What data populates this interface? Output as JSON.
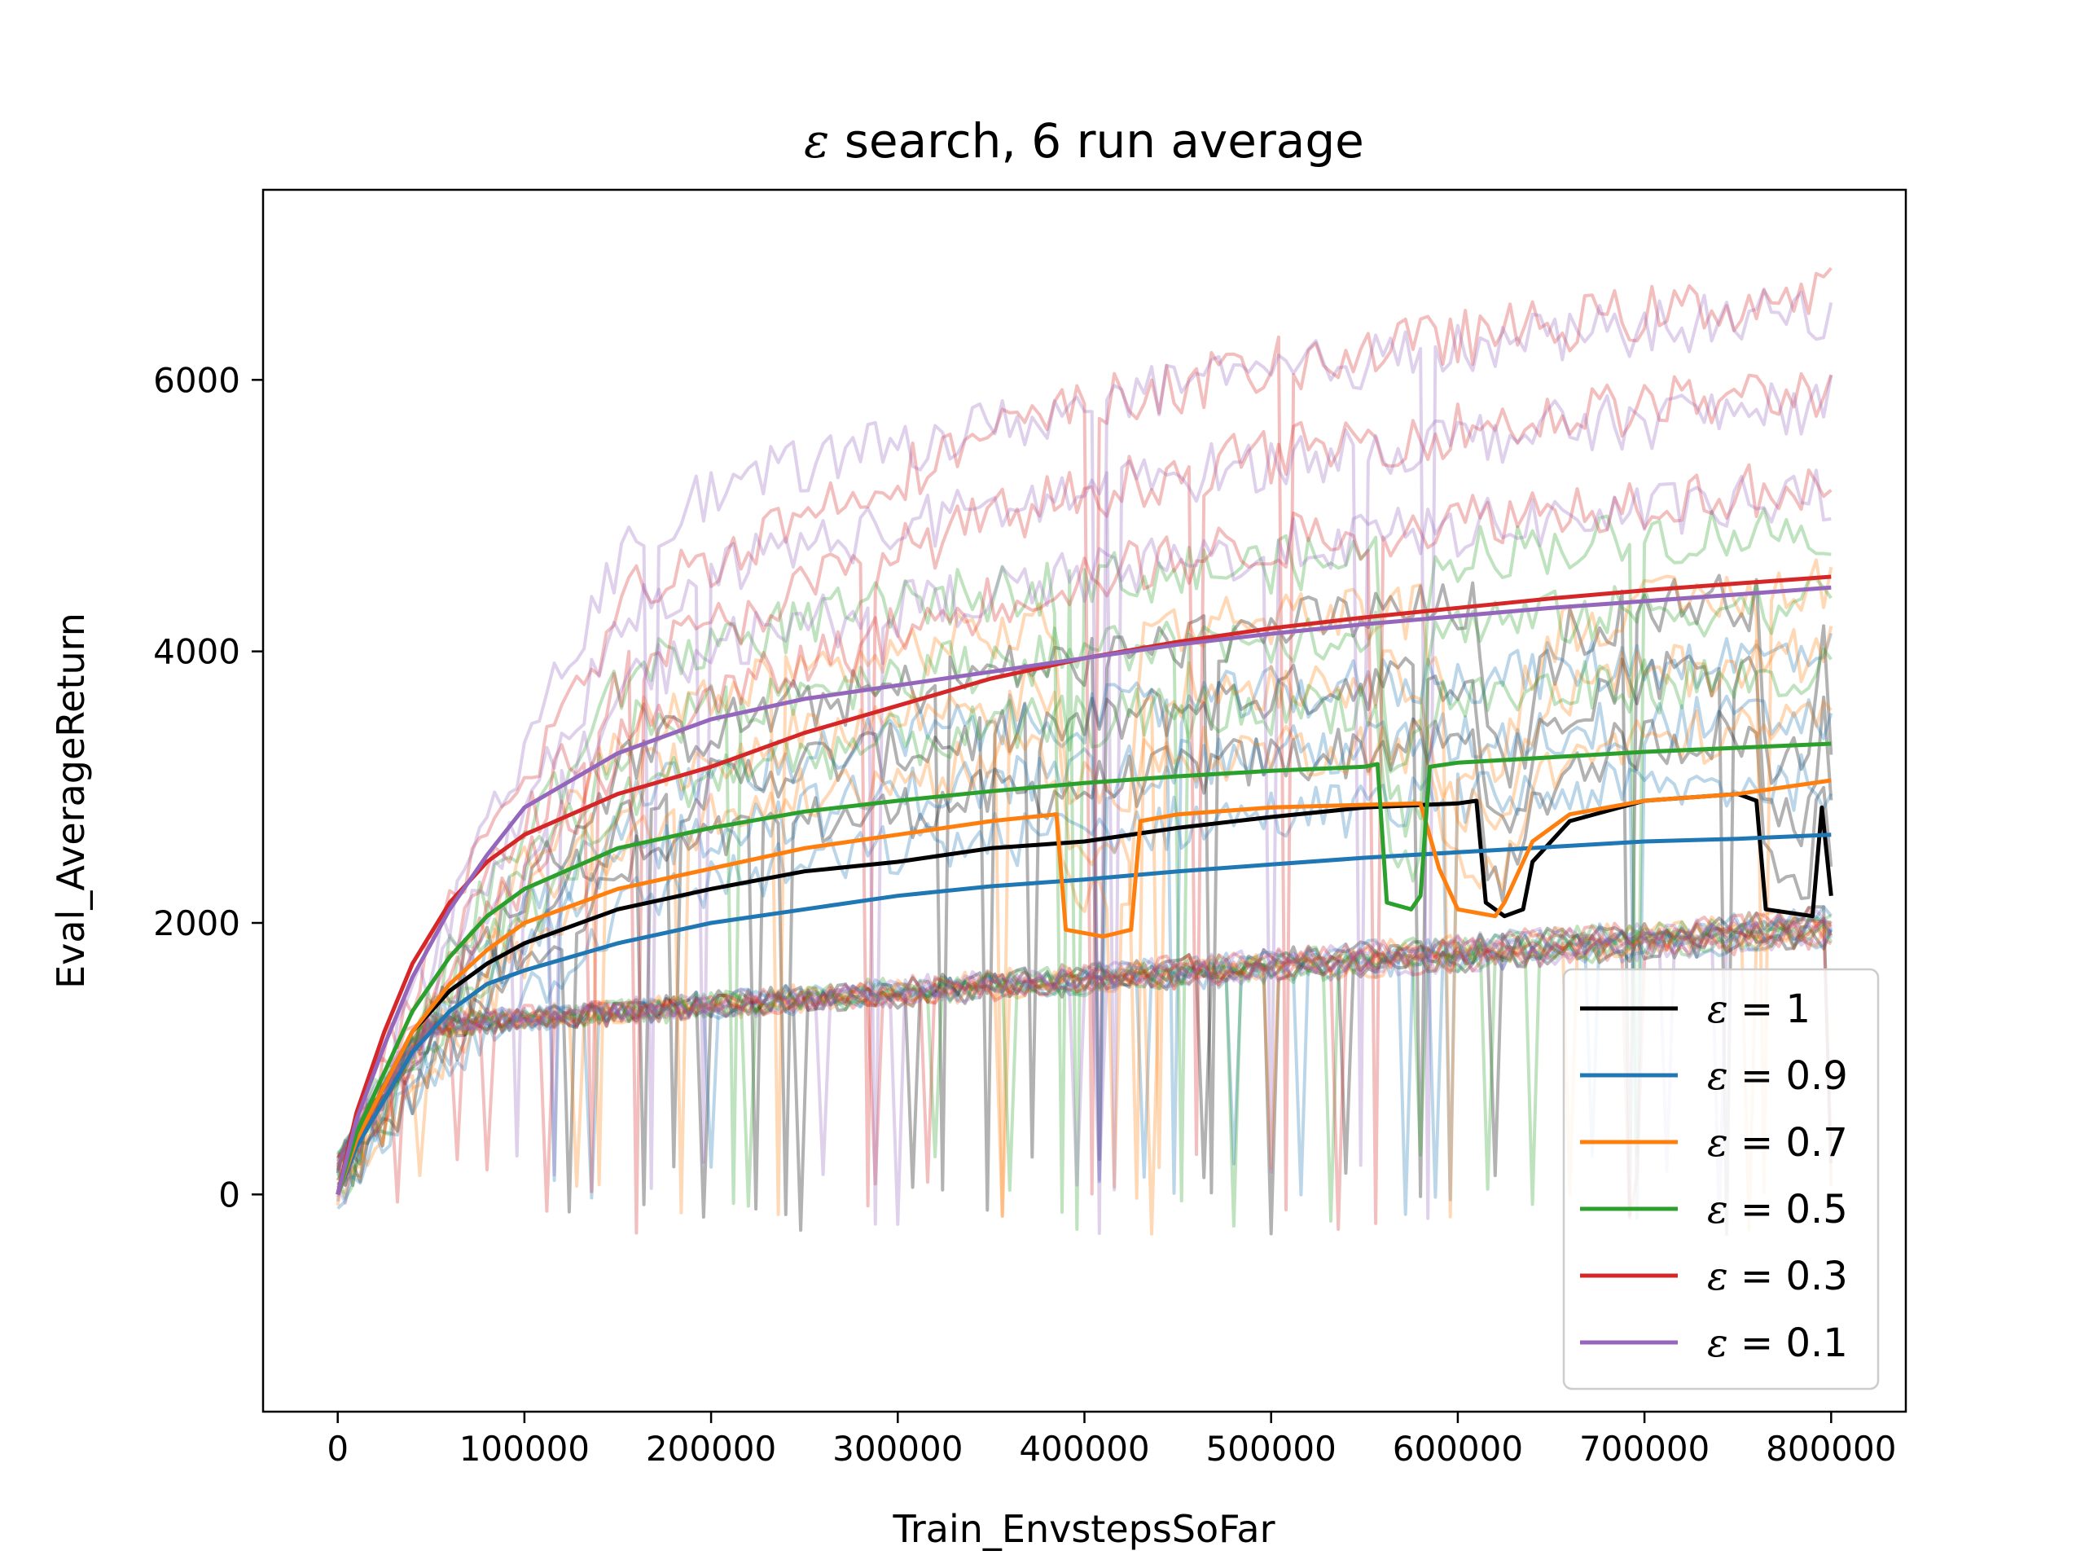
{
  "chart_data": {
    "type": "line",
    "title_symbol": "ε",
    "title_text": " search, 6 run average",
    "xlabel": "Train_EnvstepsSoFar",
    "ylabel": "Eval_AverageReturn",
    "xlim": [
      -40000,
      840000
    ],
    "ylim": [
      -1600,
      7400
    ],
    "x_ticks": [
      0,
      100000,
      200000,
      300000,
      400000,
      500000,
      600000,
      700000,
      800000
    ],
    "x_tick_labels": [
      "0",
      "100000",
      "200000",
      "300000",
      "400000",
      "500000",
      "600000",
      "700000",
      "800000"
    ],
    "y_ticks": [
      0,
      2000,
      4000,
      6000
    ],
    "y_tick_labels": [
      "0",
      "2000",
      "4000",
      "6000"
    ],
    "grid": false,
    "legend_position": "lower-right",
    "series": [
      {
        "name": "ε = 1",
        "legend_symbol": "ε",
        "legend_value": " = 1",
        "color": "#000000",
        "x": [
          0,
          10000,
          25000,
          40000,
          60000,
          80000,
          100000,
          150000,
          200000,
          250000,
          300000,
          350000,
          400000,
          450000,
          500000,
          550000,
          600000,
          610000,
          615000,
          625000,
          635000,
          640000,
          660000,
          700000,
          750000,
          760000,
          765000,
          790000,
          795000,
          800000
        ],
        "y": [
          0,
          400,
          800,
          1200,
          1500,
          1700,
          1850,
          2100,
          2250,
          2380,
          2450,
          2550,
          2600,
          2700,
          2780,
          2850,
          2880,
          2900,
          2150,
          2050,
          2100,
          2450,
          2750,
          2900,
          2950,
          2900,
          2100,
          2050,
          2850,
          2200
        ]
      },
      {
        "name": "ε = 0.9",
        "legend_symbol": "ε",
        "legend_value": " = 0.9",
        "color": "#1f77b4",
        "x": [
          0,
          10000,
          25000,
          40000,
          60000,
          80000,
          100000,
          150000,
          200000,
          250000,
          300000,
          350000,
          400000,
          450000,
          500000,
          550000,
          600000,
          650000,
          700000,
          750000,
          800000
        ],
        "y": [
          0,
          350,
          700,
          1050,
          1350,
          1550,
          1650,
          1850,
          2000,
          2100,
          2200,
          2270,
          2320,
          2380,
          2430,
          2480,
          2520,
          2560,
          2600,
          2620,
          2650
        ]
      },
      {
        "name": "ε = 0.7",
        "legend_symbol": "ε",
        "legend_value": " = 0.7",
        "color": "#ff7f0e",
        "x": [
          0,
          10000,
          25000,
          40000,
          60000,
          80000,
          100000,
          150000,
          200000,
          250000,
          300000,
          350000,
          385000,
          390000,
          410000,
          425000,
          430000,
          450000,
          500000,
          550000,
          580000,
          590000,
          600000,
          620000,
          625000,
          640000,
          660000,
          700000,
          750000,
          800000
        ],
        "y": [
          0,
          400,
          800,
          1200,
          1550,
          1800,
          2000,
          2250,
          2400,
          2550,
          2650,
          2750,
          2800,
          1950,
          1900,
          1950,
          2750,
          2800,
          2850,
          2870,
          2880,
          2400,
          2100,
          2050,
          2150,
          2600,
          2800,
          2900,
          2950,
          3050
        ]
      },
      {
        "name": "ε = 0.5",
        "legend_symbol": "ε",
        "legend_value": " = 0.5",
        "color": "#2ca02c",
        "x": [
          0,
          10000,
          25000,
          40000,
          60000,
          80000,
          100000,
          150000,
          200000,
          250000,
          300000,
          350000,
          400000,
          450000,
          500000,
          550000,
          557000,
          562000,
          575000,
          580000,
          585000,
          600000,
          650000,
          700000,
          750000,
          800000
        ],
        "y": [
          0,
          450,
          900,
          1350,
          1750,
          2050,
          2250,
          2550,
          2700,
          2820,
          2900,
          2970,
          3030,
          3080,
          3120,
          3150,
          3170,
          2150,
          2100,
          2200,
          3150,
          3180,
          3220,
          3260,
          3290,
          3320
        ]
      },
      {
        "name": "ε = 0.3",
        "legend_symbol": "ε",
        "legend_value": " = 0.3",
        "color": "#d62728",
        "x": [
          0,
          10000,
          25000,
          40000,
          60000,
          80000,
          100000,
          150000,
          200000,
          250000,
          300000,
          350000,
          400000,
          450000,
          500000,
          550000,
          600000,
          650000,
          700000,
          750000,
          800000
        ],
        "y": [
          0,
          600,
          1200,
          1700,
          2150,
          2450,
          2650,
          2950,
          3150,
          3400,
          3600,
          3800,
          3950,
          4070,
          4170,
          4250,
          4320,
          4390,
          4450,
          4500,
          4550
        ]
      },
      {
        "name": "ε = 0.1",
        "legend_symbol": "ε",
        "legend_value": " = 0.1",
        "color": "#9467bd",
        "x": [
          0,
          10000,
          25000,
          40000,
          60000,
          80000,
          100000,
          150000,
          200000,
          250000,
          300000,
          350000,
          400000,
          450000,
          500000,
          550000,
          600000,
          650000,
          700000,
          750000,
          800000
        ],
        "y": [
          0,
          550,
          1100,
          1600,
          2100,
          2500,
          2850,
          3250,
          3500,
          3650,
          3750,
          3850,
          3950,
          4050,
          4130,
          4200,
          4260,
          4320,
          4370,
          4420,
          4470
        ]
      }
    ]
  }
}
